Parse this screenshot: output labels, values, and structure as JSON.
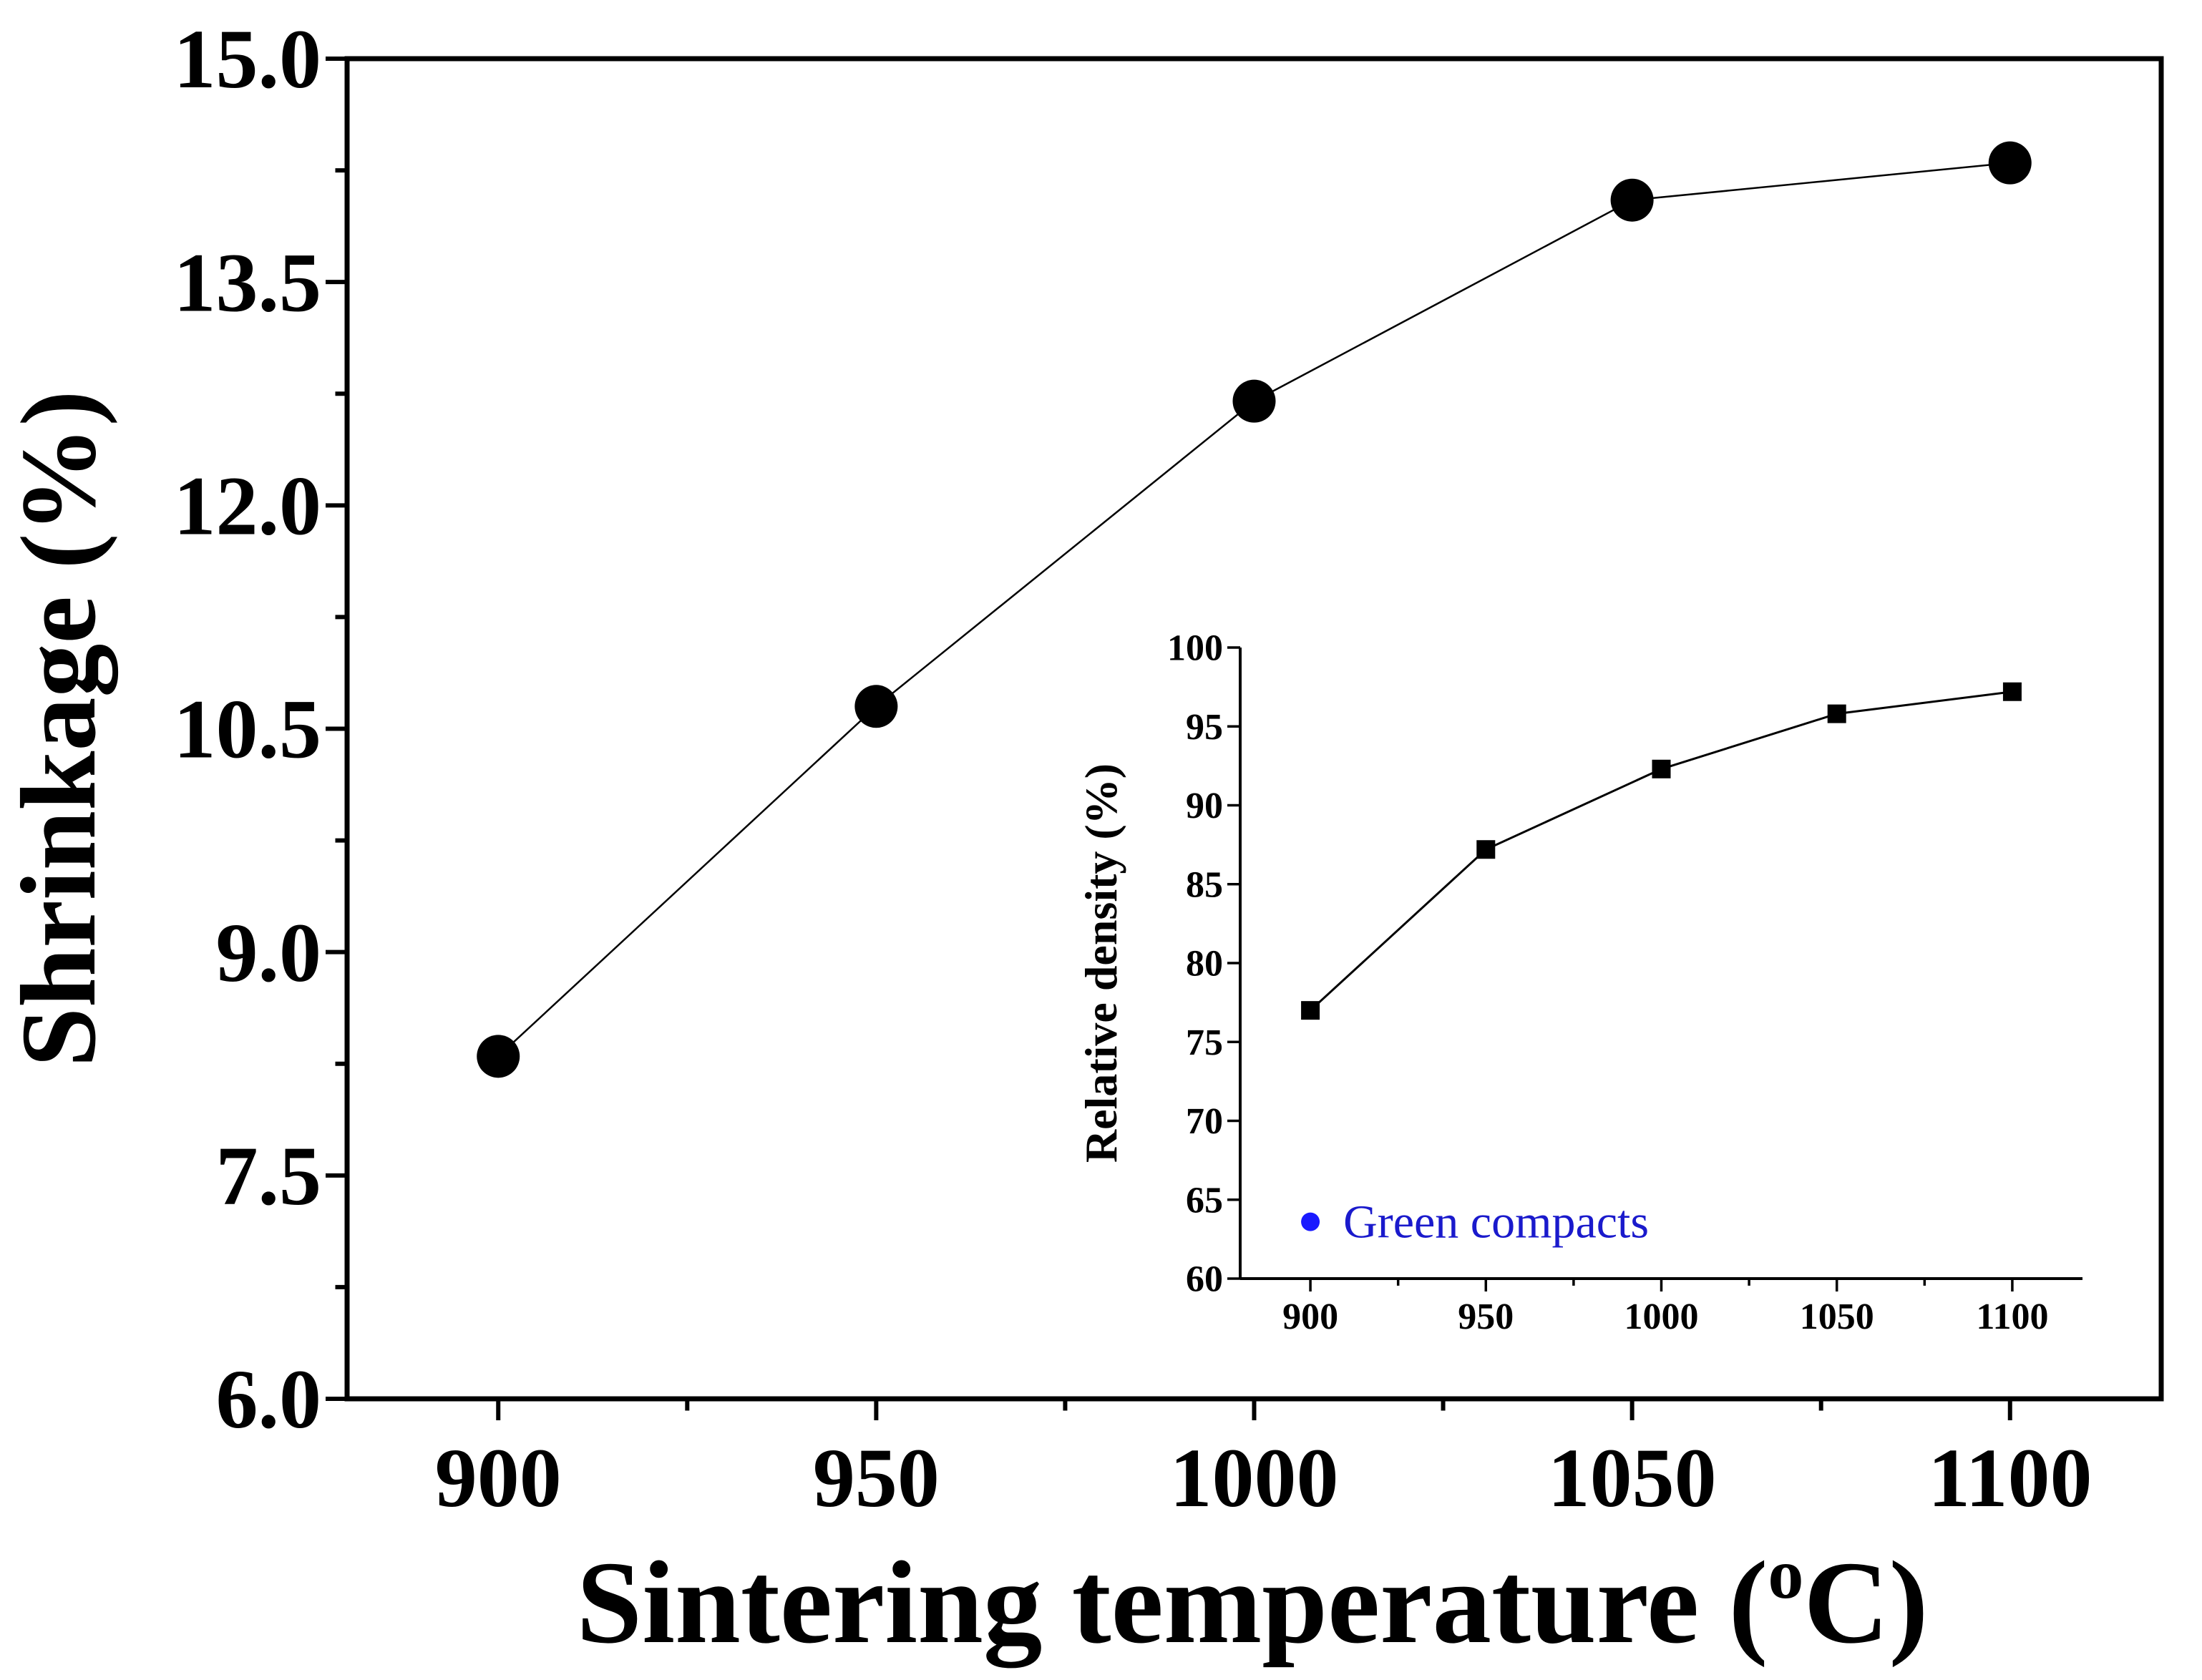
{
  "chart_data": [
    {
      "id": "main",
      "type": "line",
      "xlabel": "Sintering temperature (",
      "xlabel_sup": "o",
      "xlabel_tail": "C)",
      "ylabel": "Shrinkage (%)",
      "xlim": [
        880,
        1120
      ],
      "ylim": [
        6.0,
        15.0
      ],
      "x_ticks": [
        900,
        950,
        1000,
        1050,
        1100
      ],
      "x_tick_labels": [
        "900",
        "950",
        "1000",
        "1050",
        "1100"
      ],
      "x_minor_ticks": [
        925,
        975,
        1025,
        1075
      ],
      "y_ticks": [
        6.0,
        7.5,
        9.0,
        10.5,
        12.0,
        13.5,
        15.0
      ],
      "y_tick_labels": [
        "6.0",
        "7.5",
        "9.0",
        "10.5",
        "12.0",
        "13.5",
        "15.0"
      ],
      "y_minor_ticks": [
        6.75,
        8.25,
        9.75,
        11.25,
        12.75,
        14.25
      ],
      "marker": "circle",
      "series": [
        {
          "x": [
            900,
            950,
            1000,
            1050,
            1100
          ],
          "y": [
            8.3,
            10.65,
            12.7,
            14.05,
            14.3
          ]
        }
      ]
    },
    {
      "id": "inset",
      "type": "line",
      "xlabel": "",
      "ylabel": "Relative density (%)",
      "xlim": [
        880,
        1120
      ],
      "ylim": [
        60,
        100
      ],
      "x_ticks": [
        900,
        950,
        1000,
        1050,
        1100
      ],
      "x_tick_labels": [
        "900",
        "950",
        "1000",
        "1050",
        "1100"
      ],
      "x_minor_ticks": [
        925,
        975,
        1025,
        1075
      ],
      "y_ticks": [
        60,
        65,
        70,
        75,
        80,
        85,
        90,
        95,
        100
      ],
      "y_tick_labels": [
        "60",
        "65",
        "70",
        "75",
        "80",
        "85",
        "90",
        "95",
        "100"
      ],
      "marker": "square",
      "series": [
        {
          "x": [
            900,
            950,
            1000,
            1050,
            1100
          ],
          "y": [
            77.0,
            87.2,
            92.3,
            95.8,
            97.2
          ]
        }
      ],
      "legend": {
        "label": "Green compacts",
        "marker": "circle",
        "color": "#1a1aff",
        "x": 900,
        "y": 63.6
      }
    }
  ],
  "colors": {
    "axis": "#000000",
    "line": "#000000",
    "marker": "#000000",
    "legend_text": "#1a1acc"
  }
}
